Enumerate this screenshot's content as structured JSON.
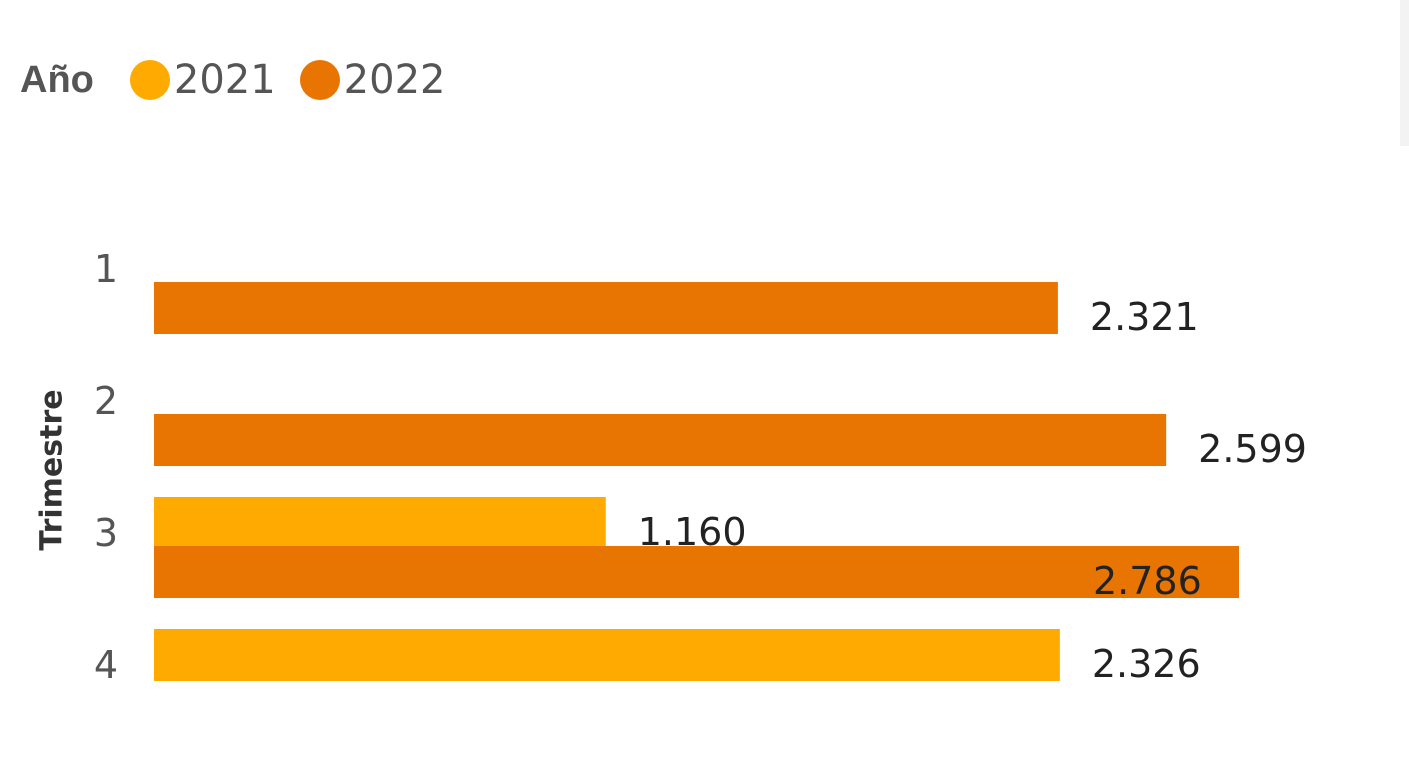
{
  "legend": {
    "title": "Año"
  },
  "colors": {
    "2021": "#FFAA00",
    "2022": "#E87502"
  },
  "chart_data": {
    "type": "bar",
    "orientation": "horizontal",
    "ylabel": "Trimestre",
    "xlabel": "",
    "categories": [
      "1",
      "2",
      "3",
      "4"
    ],
    "series": [
      {
        "name": "2021",
        "color": "#FFAA00",
        "values": [
          null,
          null,
          1160,
          2326
        ],
        "labels": [
          "",
          "",
          "1.160",
          "2.326"
        ]
      },
      {
        "name": "2022",
        "color": "#E87502",
        "values": [
          2321,
          2599,
          2786,
          null
        ],
        "labels": [
          "2.321",
          "2.599",
          "2.786",
          ""
        ]
      }
    ],
    "xlim": [
      0,
      2786
    ],
    "grid": false,
    "legend_position": "top-left"
  }
}
